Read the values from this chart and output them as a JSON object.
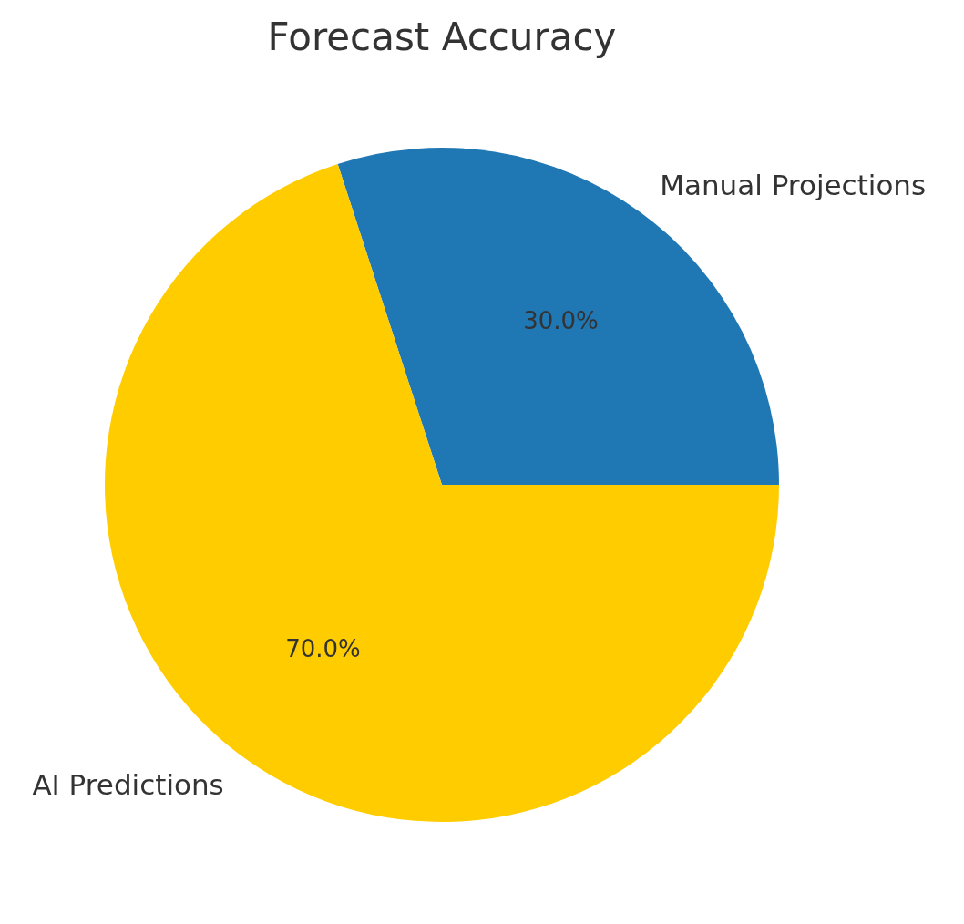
{
  "chart_data": {
    "type": "pie",
    "title": "Forecast Accuracy",
    "categories": [
      "Manual Projections",
      "AI Predictions"
    ],
    "values": [
      30,
      70
    ],
    "colors": [
      "#1f77b4",
      "#ffcc00"
    ],
    "value_labels": [
      "30.0%",
      "70.0%"
    ]
  }
}
